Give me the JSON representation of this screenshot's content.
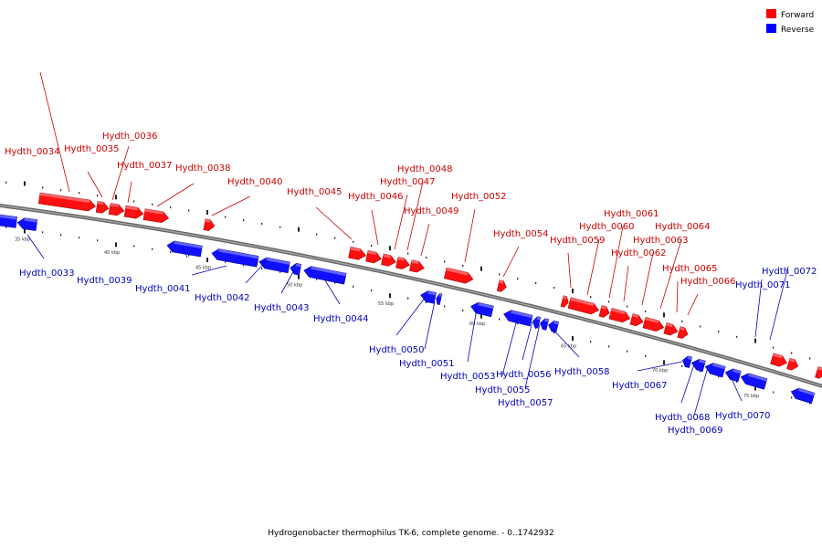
{
  "legend": {
    "forward": {
      "label": "Forward",
      "color": "#ff0000"
    },
    "reverse": {
      "label": "Reverse",
      "color": "#0000ff"
    }
  },
  "caption": "Hydrogenobacter thermophilus TK-6, complete genome. - 0..1742932",
  "scale_labels": [
    "35 kbp",
    "40 kbp",
    "45 kbp",
    "50 kbp",
    "55 kbp",
    "60 kbp",
    "65 kbp",
    "70 kbp",
    "75 kbp"
  ],
  "forward_genes": [
    "Hydth_0034",
    "Hydth_0035",
    "Hydth_0036",
    "Hydth_0037",
    "Hydth_0038",
    "Hydth_0040",
    "Hydth_0045",
    "Hydth_0046",
    "Hydth_0047",
    "Hydth_0048",
    "Hydth_0049",
    "Hydth_0052",
    "Hydth_0054",
    "Hydth_0059",
    "Hydth_0060",
    "Hydth_0061",
    "Hydth_0062",
    "Hydth_0063",
    "Hydth_0064",
    "Hydth_0065",
    "Hydth_0066"
  ],
  "reverse_genes": [
    "Hydth_0033",
    "Hydth_0039",
    "Hydth_0041",
    "Hydth_0042",
    "Hydth_0043",
    "Hydth_0044",
    "Hydth_0050",
    "Hydth_0051",
    "Hydth_0053",
    "Hydth_0055",
    "Hydth_0056",
    "Hydth_0057",
    "Hydth_0058",
    "Hydth_0067",
    "Hydth_0068",
    "Hydth_0069",
    "Hydth_0070",
    "Hydth_0071",
    "Hydth_0072"
  ]
}
